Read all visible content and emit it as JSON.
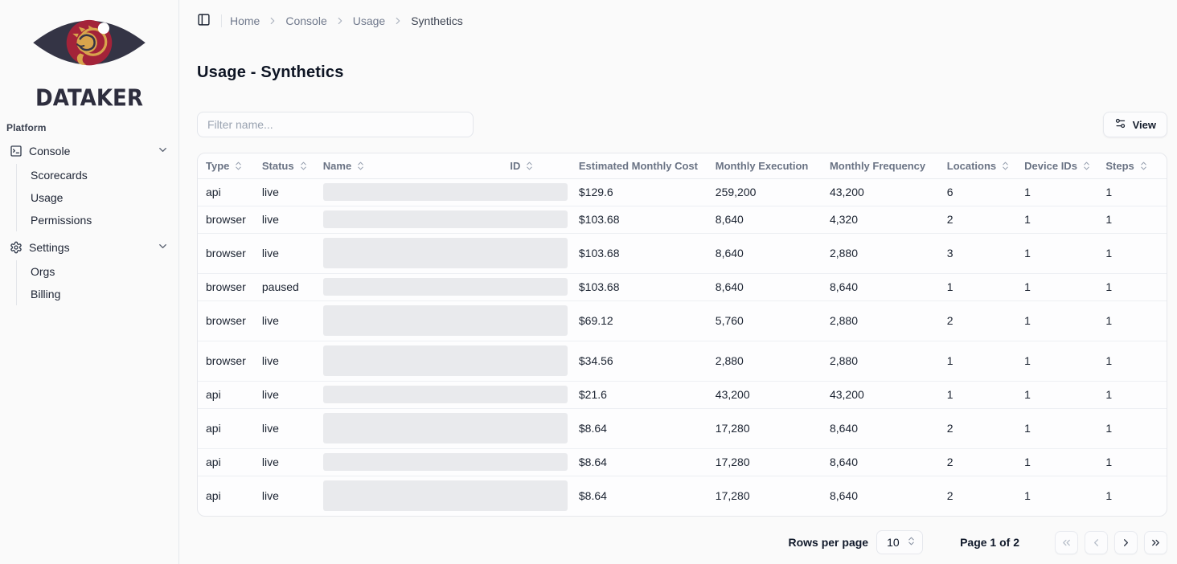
{
  "sidebar": {
    "brand": "DATAKER",
    "section_label": "Platform",
    "groups": [
      {
        "label": "Console",
        "icon": "square-terminal-icon",
        "expanded": true,
        "children": [
          "Scorecards",
          "Usage",
          "Permissions"
        ]
      },
      {
        "label": "Settings",
        "icon": "gear-icon",
        "expanded": true,
        "children": [
          "Orgs",
          "Billing"
        ]
      }
    ]
  },
  "header": {
    "breadcrumbs": [
      "Home",
      "Console",
      "Usage",
      "Synthetics"
    ]
  },
  "page": {
    "title": "Usage - Synthetics"
  },
  "toolbar": {
    "filter_placeholder": "Filter name...",
    "view_label": "View"
  },
  "table": {
    "columns": [
      "Type",
      "Status",
      "Name",
      "ID",
      "Estimated Monthly Cost",
      "Monthly Execution",
      "Monthly Frequency",
      "Locations",
      "Device IDs",
      "Steps"
    ],
    "rows": [
      {
        "type": "api",
        "status": "live",
        "cost": "$129.6",
        "execution": "259,200",
        "frequency": "43,200",
        "locations": "6",
        "device_ids": "1",
        "steps": "1",
        "name_placeholder_lines": 1
      },
      {
        "type": "browser",
        "status": "live",
        "cost": "$103.68",
        "execution": "8,640",
        "frequency": "4,320",
        "locations": "2",
        "device_ids": "1",
        "steps": "1",
        "name_placeholder_lines": 1
      },
      {
        "type": "browser",
        "status": "live",
        "cost": "$103.68",
        "execution": "8,640",
        "frequency": "2,880",
        "locations": "3",
        "device_ids": "1",
        "steps": "1",
        "name_placeholder_lines": 2
      },
      {
        "type": "browser",
        "status": "paused",
        "cost": "$103.68",
        "execution": "8,640",
        "frequency": "8,640",
        "locations": "1",
        "device_ids": "1",
        "steps": "1",
        "name_placeholder_lines": 1
      },
      {
        "type": "browser",
        "status": "live",
        "cost": "$69.12",
        "execution": "5,760",
        "frequency": "2,880",
        "locations": "2",
        "device_ids": "1",
        "steps": "1",
        "name_placeholder_lines": 2
      },
      {
        "type": "browser",
        "status": "live",
        "cost": "$34.56",
        "execution": "2,880",
        "frequency": "2,880",
        "locations": "1",
        "device_ids": "1",
        "steps": "1",
        "name_placeholder_lines": 2
      },
      {
        "type": "api",
        "status": "live",
        "cost": "$21.6",
        "execution": "43,200",
        "frequency": "43,200",
        "locations": "1",
        "device_ids": "1",
        "steps": "1",
        "name_placeholder_lines": 1
      },
      {
        "type": "api",
        "status": "live",
        "cost": "$8.64",
        "execution": "17,280",
        "frequency": "8,640",
        "locations": "2",
        "device_ids": "1",
        "steps": "1",
        "name_placeholder_lines": 2
      },
      {
        "type": "api",
        "status": "live",
        "cost": "$8.64",
        "execution": "17,280",
        "frequency": "8,640",
        "locations": "2",
        "device_ids": "1",
        "steps": "1",
        "name_placeholder_lines": 1
      },
      {
        "type": "api",
        "status": "live",
        "cost": "$8.64",
        "execution": "17,280",
        "frequency": "8,640",
        "locations": "2",
        "device_ids": "1",
        "steps": "1",
        "name_placeholder_lines": 2
      }
    ]
  },
  "pagination": {
    "rows_per_page_label": "Rows per page",
    "rows_per_page_value": "10",
    "page_info": "Page 1 of 2"
  },
  "icons": {
    "sidebar_toggle": "panel-left-icon",
    "breadcrumb_separator": "chevron-right-icon",
    "view_button": "sliders-icon",
    "column_sort": "chevrons-up-down-icon",
    "rows_select": "chevrons-up-down-icon",
    "first_page": "chevrons-left-icon",
    "prev_page": "chevron-left-icon",
    "next_page": "chevron-right-icon",
    "last_page": "chevrons-right-icon"
  },
  "colors": {
    "brand_navy": "#343445",
    "brand_crimson": "#a32339",
    "brand_gold": "#d8a44c",
    "page_bg": "#fafafa",
    "border": "#e6e8ec",
    "text_primary": "#1a2230",
    "text_muted": "#6a7384",
    "skeleton": "#e9eaed"
  }
}
